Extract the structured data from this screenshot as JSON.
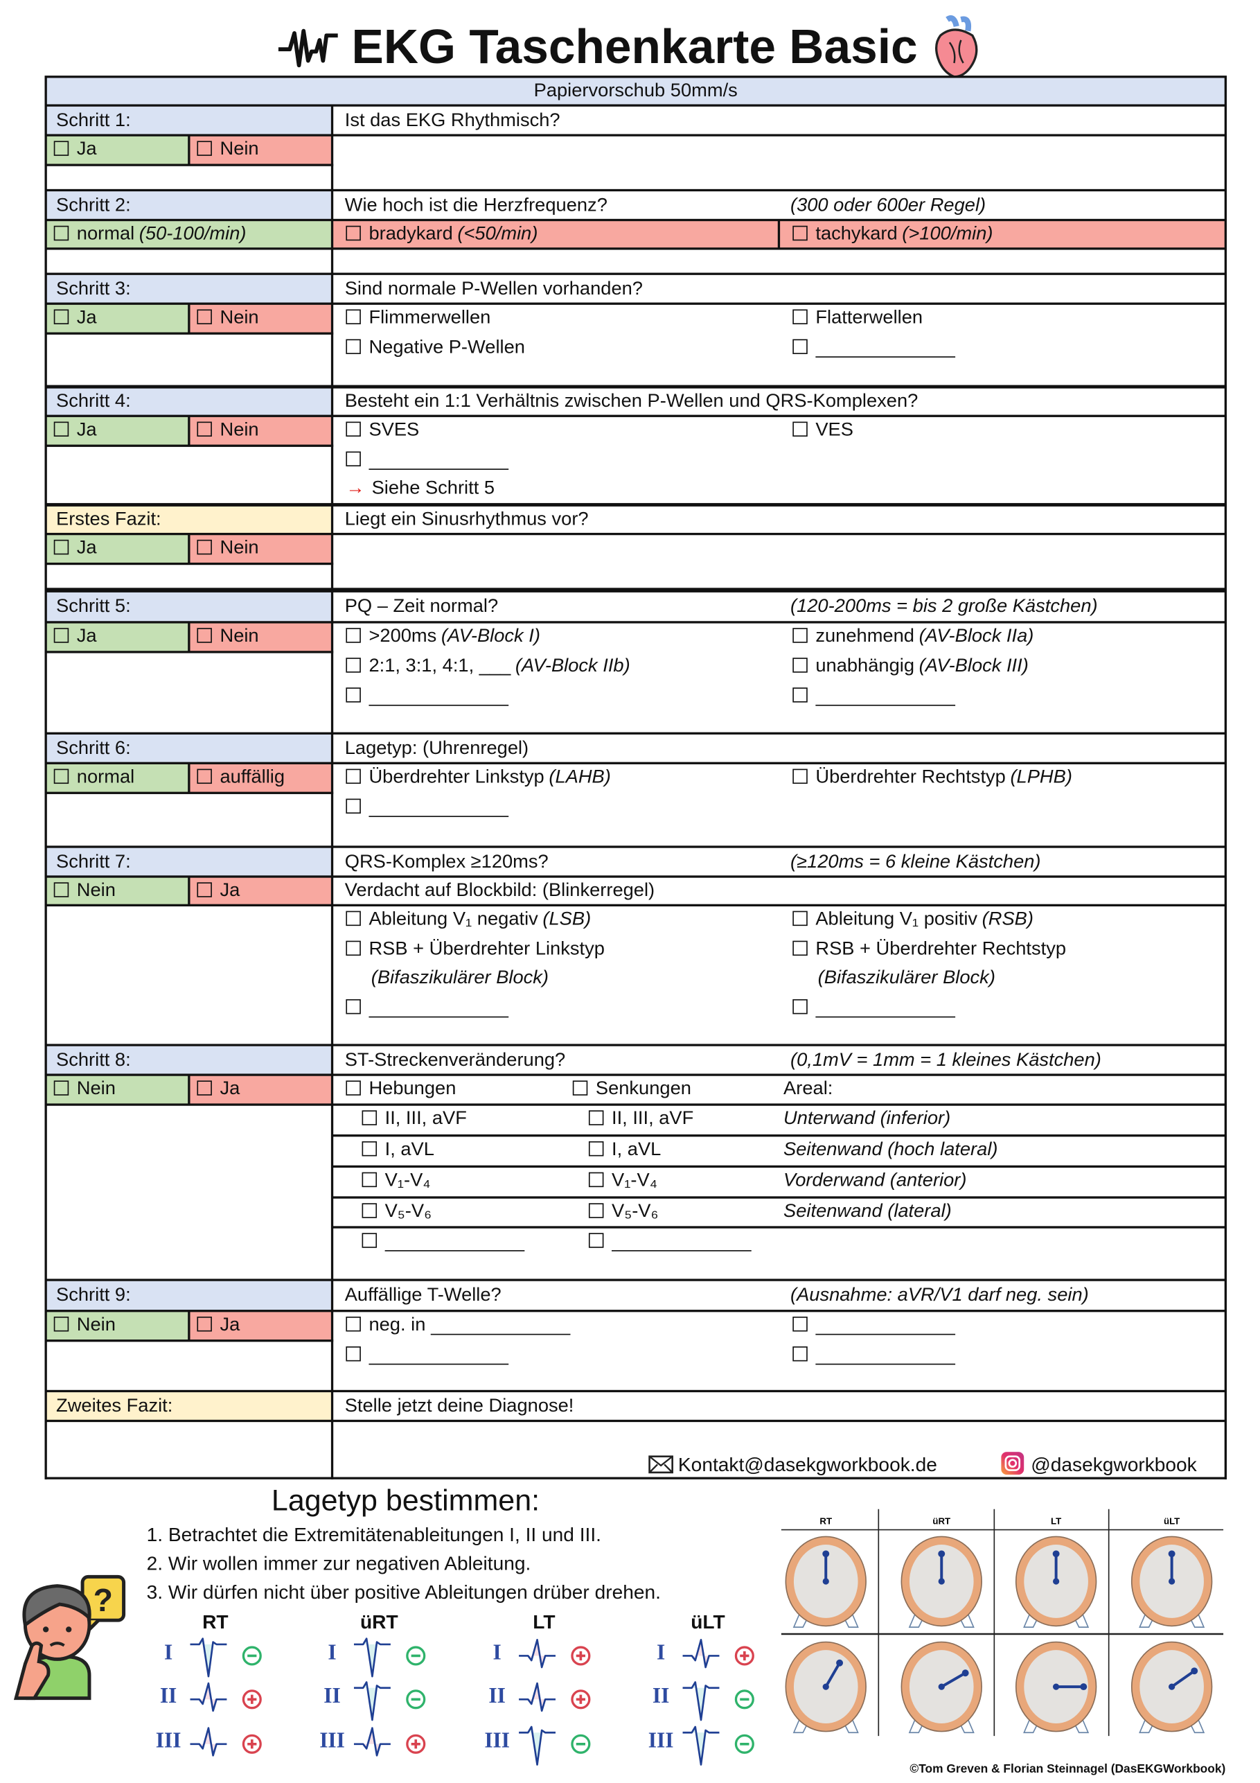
{
  "title": "EKG Taschenkarte Basic",
  "paper_speed": "Papiervorschub 50mm/s",
  "colors": {
    "blue": "#d9e2f3",
    "green": "#c5e0b4",
    "red": "#f8a8a0",
    "yellow": "#fff2cc",
    "accent_arrow": "#e0201b",
    "lead_blue": "#2d4aa0",
    "positive": "#d9434f",
    "negative": "#2fb36b",
    "clock_ring": "#e8a77a",
    "clock_face": "#e4e2df",
    "clock_hand": "#1f3f93"
  },
  "s1": {
    "label": "Schritt 1:",
    "question": "Ist das EKG Rhythmisch?",
    "a": "Ja",
    "b": "Nein"
  },
  "s2": {
    "label": "Schritt 2:",
    "question": "Wie hoch ist die Herzfrequenz?",
    "note": "(300 oder 600er Regel)",
    "normal": "normal",
    "normal_hint": "(50-100/min)",
    "brady": "bradykard",
    "brady_hint": "(<50/min)",
    "tachy": "tachykard",
    "tachy_hint": "(>100/min)"
  },
  "s3": {
    "label": "Schritt 3:",
    "question": "Sind normale P-Wellen vorhanden?",
    "a": "Ja",
    "b": "Nein",
    "options": [
      "Flimmerwellen",
      "Flatterwellen",
      "Negative P-Wellen"
    ]
  },
  "s4": {
    "label": "Schritt 4:",
    "question": "Besteht ein 1:1 Verhältnis zwischen P-Wellen und QRS-Komplexen?",
    "a": "Ja",
    "b": "Nein",
    "options": [
      "SVES",
      "VES"
    ],
    "arrow": "→",
    "goto": "Siehe Schritt 5"
  },
  "fazit1": {
    "label": "Erstes Fazit:",
    "question": "Liegt ein Sinusrhythmus vor?",
    "a": "Ja",
    "b": "Nein"
  },
  "s5": {
    "label": "Schritt 5:",
    "question": "PQ – Zeit normal?",
    "note": "(120-200ms = bis 2 große Kästchen)",
    "a": "Ja",
    "b": "Nein",
    "options": [
      {
        "text": ">200ms",
        "hint": "(AV-Block I)"
      },
      {
        "text": "zunehmend",
        "hint": "(AV-Block IIa)"
      },
      {
        "text": "2:1, 3:1, 4:1, ___",
        "hint": "(AV-Block IIb)"
      },
      {
        "text": "unabhängig",
        "hint": "(AV-Block III)"
      }
    ]
  },
  "s6": {
    "label": "Schritt 6:",
    "question": "Lagetyp: (Uhrenregel)",
    "a": "normal",
    "b": "auffällig",
    "options": [
      {
        "text": "Überdrehter Linkstyp",
        "hint": "(LAHB)"
      },
      {
        "text": "Überdrehter Rechtstyp",
        "hint": "(LPHB)"
      }
    ]
  },
  "s7": {
    "label": "Schritt 7:",
    "question": "QRS-Komplex ≥120ms?",
    "note": "(≥120ms = 6 kleine Kästchen)",
    "a": "Nein",
    "b": "Ja",
    "sub_question": "Verdacht auf Blockbild: (Blinkerregel)",
    "options": [
      {
        "text": "Ableitung V₁ negativ",
        "hint": "(LSB)"
      },
      {
        "text": "Ableitung V₁ positiv",
        "hint": "(RSB)"
      },
      {
        "text": "RSB + Überdrehter Linkstyp",
        "hint": "(Bifaszikulärer Block)"
      },
      {
        "text": "RSB + Überdrehter Rechtstyp",
        "hint": "(Bifaszikulärer Block)"
      }
    ]
  },
  "s8": {
    "label": "Schritt 8:",
    "question": "ST-Streckenveränderung?",
    "note": "(0,1mV = 1mm = 1 kleines Kästchen)",
    "a": "Nein",
    "b": "Ja",
    "elevation": "Hebungen",
    "depression": "Senkungen",
    "area_header": "Areal:",
    "rows": [
      {
        "leads": "II, III, aVF",
        "area": "Unterwand (inferior)"
      },
      {
        "leads": "I, aVL",
        "area": "Seitenwand (hoch lateral)"
      },
      {
        "leads": "V₁-V₄",
        "area": "Vorderwand (anterior)"
      },
      {
        "leads": "V₅-V₆",
        "area": "Seitenwand (lateral)"
      }
    ]
  },
  "s9": {
    "label": "Schritt 9:",
    "question": "Auffällige T-Welle?",
    "note": "(Ausnahme: aVR/V1 darf neg. sein)",
    "a": "Nein",
    "b": "Ja",
    "option": "neg. in"
  },
  "fazit2": {
    "label": "Zweites Fazit:",
    "question": "Stelle jetzt deine Diagnose!"
  },
  "contact": {
    "email": "Kontakt@dasekgworkbook.de",
    "instagram": "@dasekgworkbook"
  },
  "lagetyp": {
    "title": "Lagetyp bestimmen:",
    "steps": [
      "1. Betrachtet die Extremitätenableitungen I, II und III.",
      "2. Wir wollen immer zur negativen Ableitung.",
      "3. Wir dürfen nicht über positive Ableitungen drüber drehen."
    ],
    "leads": [
      "I",
      "II",
      "III"
    ],
    "types": [
      {
        "name": "RT",
        "signs": [
          "-",
          "+",
          "+"
        ]
      },
      {
        "name": "üRT",
        "signs": [
          "-",
          "-",
          "+"
        ]
      },
      {
        "name": "LT",
        "signs": [
          "+",
          "+",
          "-"
        ]
      },
      {
        "name": "üLT",
        "signs": [
          "+",
          "-",
          "-"
        ]
      }
    ],
    "clock_headers": [
      "RT",
      "üRT",
      "LT",
      "üLT"
    ],
    "clock_bottom_hand_degrees": [
      30,
      60,
      90,
      55
    ]
  },
  "copyright": "©Tom Greven & Florian Steinnagel (DasEKGWorkbook)"
}
